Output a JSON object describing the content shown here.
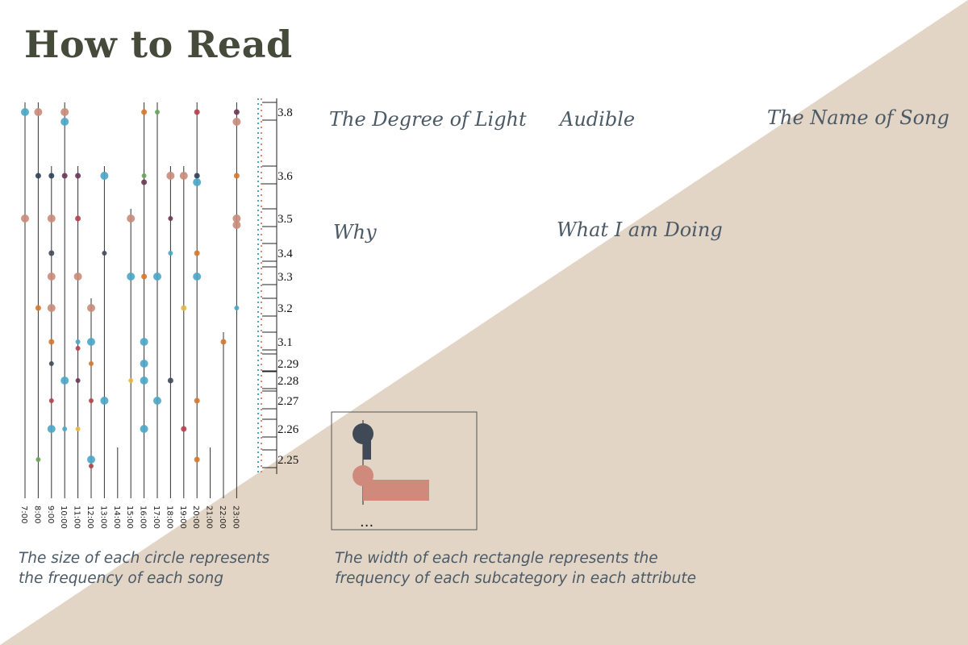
{
  "title": "How to Read",
  "labels": {
    "degree_of_light": "The Degree of Light",
    "audible": "Audible",
    "name_of_song": "The Name of Song",
    "why": "Why",
    "what_i_am_doing": "What I am Doing"
  },
  "notes": {
    "circle_line1": "The size of each circle represents",
    "circle_line2": "the frequency of each song",
    "rect_line1": "The width of each rectangle represents the",
    "rect_line2": "frequency of each subcategory in each attribute"
  },
  "legend_box": {
    "ellipsis": "..."
  },
  "colors": {
    "background_wedge": "#e2d5c5",
    "text": "#4c5a66",
    "title": "#454a3a",
    "blue": "#4aa6c6",
    "pink": "#c98b7a",
    "orange": "#d6772e",
    "dark_red": "#b5404a",
    "purple": "#6a3555",
    "navy": "#2f4058",
    "green": "#6aa35a",
    "yellow": "#e6b842",
    "slate": "#3f4a56",
    "rose": "#cf8a7b"
  },
  "chart_data": {
    "type": "scatter",
    "x_ticks": [
      "7:00",
      "8:00",
      "9:00",
      "10:00",
      "11:00",
      "12:00",
      "13:00",
      "14:00",
      "15:00",
      "16:00",
      "17:00",
      "18:00",
      "19:00",
      "20:00",
      "21:00",
      "22:00",
      "23:00"
    ],
    "y_ticks": [
      "3.8",
      "3.6",
      "3.5",
      "3.4",
      "3.3",
      "3.2",
      "3.1",
      "2.29",
      "2.28",
      "2.27",
      "2.26",
      "2.25"
    ],
    "points": [
      {
        "x": "7:00",
        "y": "3.8",
        "color": "blue",
        "size": 5
      },
      {
        "x": "7:00",
        "y": "3.5",
        "color": "pink",
        "size": 5
      },
      {
        "x": "8:00",
        "y": "3.8",
        "color": "pink",
        "size": 5
      },
      {
        "x": "8:00",
        "y": "3.6",
        "color": "navy",
        "size": 3.5
      },
      {
        "x": "8:00",
        "y": "3.2",
        "color": "orange",
        "size": 3.5
      },
      {
        "x": "8:00",
        "y": "2.25",
        "color": "green",
        "size": 3
      },
      {
        "x": "9:00",
        "y": "3.6",
        "color": "navy",
        "size": 3.5
      },
      {
        "x": "9:00",
        "y": "3.5",
        "color": "pink",
        "size": 5
      },
      {
        "x": "9:00",
        "y": "3.4",
        "color": "slate",
        "size": 3.5
      },
      {
        "x": "9:00",
        "y": "3.3",
        "color": "pink",
        "size": 5
      },
      {
        "x": "9:00",
        "y": "3.2",
        "color": "pink",
        "size": 5
      },
      {
        "x": "9:00",
        "y": "3.1",
        "color": "orange",
        "size": 3.5
      },
      {
        "x": "9:00",
        "y": "2.29",
        "color": "slate",
        "size": 3
      },
      {
        "x": "9:00",
        "y": "2.27",
        "color": "dark_red",
        "size": 3
      },
      {
        "x": "9:00",
        "y": "2.26",
        "color": "blue",
        "size": 5
      },
      {
        "x": "10:00",
        "y": "3.8",
        "color": "pink",
        "size": 5
      },
      {
        "x": "10:00",
        "y": "3.8",
        "color": "blue",
        "size": 5
      },
      {
        "x": "10:00",
        "y": "3.6",
        "color": "purple",
        "size": 3.5
      },
      {
        "x": "10:00",
        "y": "2.28",
        "color": "blue",
        "size": 5
      },
      {
        "x": "10:00",
        "y": "2.26",
        "color": "blue",
        "size": 3
      },
      {
        "x": "11:00",
        "y": "3.6",
        "color": "purple",
        "size": 3.5
      },
      {
        "x": "11:00",
        "y": "3.5",
        "color": "dark_red",
        "size": 3.5
      },
      {
        "x": "11:00",
        "y": "3.3",
        "color": "pink",
        "size": 5
      },
      {
        "x": "11:00",
        "y": "3.1",
        "color": "blue",
        "size": 3
      },
      {
        "x": "11:00",
        "y": "3.1",
        "color": "dark_red",
        "size": 3
      },
      {
        "x": "11:00",
        "y": "2.28",
        "color": "purple",
        "size": 3
      },
      {
        "x": "11:00",
        "y": "2.26",
        "color": "yellow",
        "size": 3
      },
      {
        "x": "12:00",
        "y": "3.2",
        "color": "pink",
        "size": 5
      },
      {
        "x": "12:00",
        "y": "3.1",
        "color": "blue",
        "size": 5
      },
      {
        "x": "12:00",
        "y": "2.29",
        "color": "orange",
        "size": 3
      },
      {
        "x": "12:00",
        "y": "2.27",
        "color": "dark_red",
        "size": 3
      },
      {
        "x": "12:00",
        "y": "2.25",
        "color": "blue",
        "size": 5
      },
      {
        "x": "12:00",
        "y": "2.25",
        "color": "dark_red",
        "size": 3
      },
      {
        "x": "13:00",
        "y": "3.6",
        "color": "blue",
        "size": 5
      },
      {
        "x": "13:00",
        "y": "3.4",
        "color": "slate",
        "size": 3
      },
      {
        "x": "13:00",
        "y": "2.27",
        "color": "blue",
        "size": 5
      },
      {
        "x": "15:00",
        "y": "3.5",
        "color": "pink",
        "size": 5
      },
      {
        "x": "15:00",
        "y": "3.3",
        "color": "blue",
        "size": 5
      },
      {
        "x": "15:00",
        "y": "2.28",
        "color": "yellow",
        "size": 3
      },
      {
        "x": "16:00",
        "y": "3.8",
        "color": "orange",
        "size": 3.5
      },
      {
        "x": "16:00",
        "y": "3.6",
        "color": "green",
        "size": 3
      },
      {
        "x": "16:00",
        "y": "3.6",
        "color": "purple",
        "size": 3.5
      },
      {
        "x": "16:00",
        "y": "3.3",
        "color": "orange",
        "size": 3.5
      },
      {
        "x": "16:00",
        "y": "3.1",
        "color": "blue",
        "size": 5
      },
      {
        "x": "16:00",
        "y": "2.29",
        "color": "blue",
        "size": 5
      },
      {
        "x": "16:00",
        "y": "2.28",
        "color": "blue",
        "size": 5
      },
      {
        "x": "16:00",
        "y": "2.26",
        "color": "blue",
        "size": 5
      },
      {
        "x": "17:00",
        "y": "3.8",
        "color": "green",
        "size": 3
      },
      {
        "x": "17:00",
        "y": "3.3",
        "color": "blue",
        "size": 5
      },
      {
        "x": "17:00",
        "y": "2.27",
        "color": "blue",
        "size": 5
      },
      {
        "x": "18:00",
        "y": "3.6",
        "color": "pink",
        "size": 5
      },
      {
        "x": "18:00",
        "y": "3.5",
        "color": "purple",
        "size": 3
      },
      {
        "x": "18:00",
        "y": "3.4",
        "color": "blue",
        "size": 3
      },
      {
        "x": "18:00",
        "y": "2.28",
        "color": "slate",
        "size": 3.5
      },
      {
        "x": "19:00",
        "y": "3.6",
        "color": "pink",
        "size": 5
      },
      {
        "x": "19:00",
        "y": "3.2",
        "color": "yellow",
        "size": 3.5
      },
      {
        "x": "19:00",
        "y": "2.26",
        "color": "dark_red",
        "size": 3.5
      },
      {
        "x": "20:00",
        "y": "3.8",
        "color": "dark_red",
        "size": 3.5
      },
      {
        "x": "20:00",
        "y": "3.6",
        "color": "navy",
        "size": 3.5
      },
      {
        "x": "20:00",
        "y": "3.6",
        "color": "blue",
        "size": 5
      },
      {
        "x": "20:00",
        "y": "3.4",
        "color": "orange",
        "size": 3.5
      },
      {
        "x": "20:00",
        "y": "3.3",
        "color": "blue",
        "size": 5
      },
      {
        "x": "20:00",
        "y": "2.27",
        "color": "orange",
        "size": 3.5
      },
      {
        "x": "20:00",
        "y": "2.25",
        "color": "orange",
        "size": 3.5
      },
      {
        "x": "22:00",
        "y": "3.1",
        "color": "orange",
        "size": 3.5
      },
      {
        "x": "23:00",
        "y": "3.8",
        "color": "purple",
        "size": 3.5
      },
      {
        "x": "23:00",
        "y": "3.8",
        "color": "pink",
        "size": 5
      },
      {
        "x": "23:00",
        "y": "3.6",
        "color": "orange",
        "size": 3.5
      },
      {
        "x": "23:00",
        "y": "3.5",
        "color": "pink",
        "size": 5
      },
      {
        "x": "23:00",
        "y": "3.5",
        "color": "pink",
        "size": 5
      },
      {
        "x": "23:00",
        "y": "3.2",
        "color": "blue",
        "size": 3
      }
    ]
  }
}
